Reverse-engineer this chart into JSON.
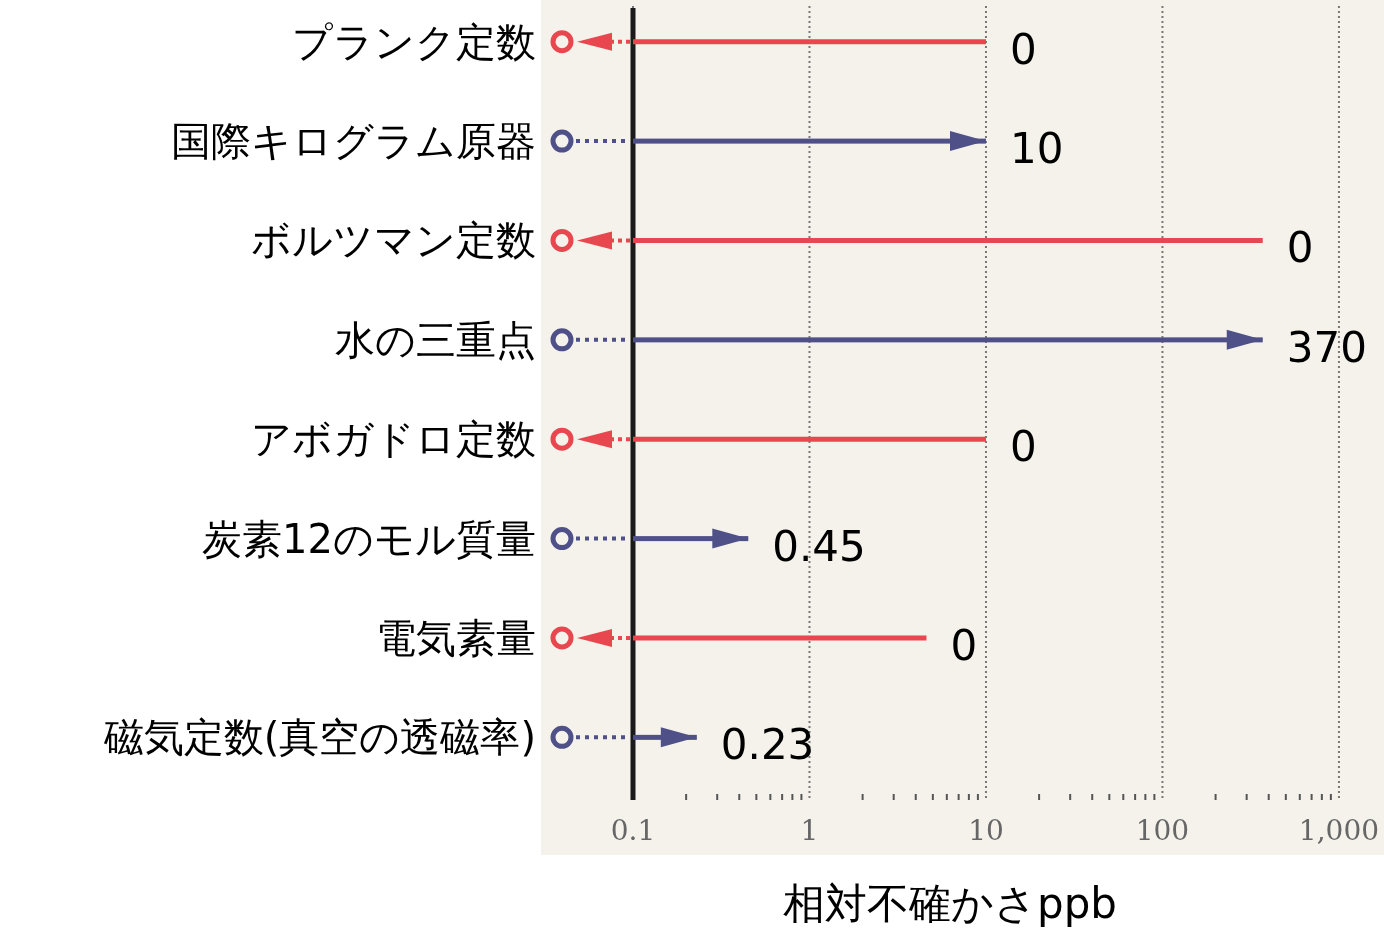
{
  "chart_data": {
    "type": "bar",
    "orientation": "horizontal",
    "xlabel": "相対不確かさppb",
    "categories": [
      "プランク定数",
      "国際キログラム原器",
      "ボルツマン定数",
      "水の三重点",
      "アボガドロ定数",
      "炭素12のモル質量",
      "電気素量",
      "磁気定数(真空の透磁率)"
    ],
    "log": "x",
    "xlim": [
      0.1,
      1800
    ],
    "xticks": [
      0.1,
      1,
      10,
      100,
      {
        "value": 1000,
        "label": "1,000"
      }
    ],
    "grid": "x",
    "marker": "circle",
    "annotations": [
      {
        "text": "0",
        "x": 10,
        "y": "プランク定数"
      },
      {
        "text": "0",
        "x": 370,
        "y": "ボルツマン定数"
      },
      {
        "text": "0",
        "x": 10,
        "y": "アボガドロ定数"
      },
      {
        "text": "0",
        "x": 4.6,
        "y": "電気素量"
      }
    ],
    "series": [
      {
        "color": "#e8474f",
        "line_style": "dashed",
        "values": [
          10,
          null,
          370,
          null,
          10,
          null,
          4.6,
          null
        ]
      },
      {
        "color": "#4f5088",
        "line_style": "dotted",
        "values": [
          null,
          10,
          null,
          370,
          null,
          0.45,
          null,
          0.23
        ],
        "value_labels": [
          null,
          "10",
          null,
          "370",
          null,
          "0.45",
          null,
          "0.23"
        ]
      }
    ]
  }
}
